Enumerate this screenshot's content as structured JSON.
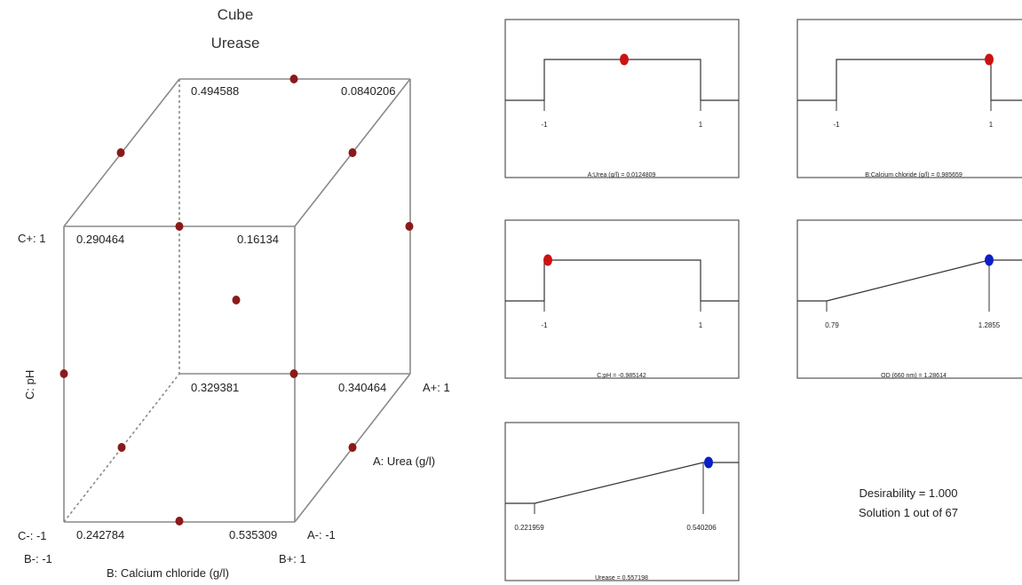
{
  "cube": {
    "title": "Cube",
    "subtitle": "Urease",
    "axis_a": "A: Urea (g/l)",
    "axis_b": "B: Calcium chloride (g/l)",
    "axis_c": "C: pH",
    "a_plus": "A+: 1",
    "a_minus": "A-: -1",
    "b_minus": "B-: -1",
    "b_plus": "B+: 1",
    "c_plus": "C+: 1",
    "c_minus": "C-: -1",
    "corners": {
      "back_top_left": "0.494588",
      "back_top_right": "0.0840206",
      "front_top_left": "0.290464",
      "front_top_right": "0.16134",
      "back_bottom_left": "0.329381",
      "back_bottom_right": "0.340464",
      "front_bottom_left": "0.242784",
      "front_bottom_right": "0.535309"
    }
  },
  "panels": {
    "a": {
      "caption": "A:Urea (g/l) = 0.0124809",
      "tick_low": "-1",
      "tick_high": "1"
    },
    "b": {
      "caption": "B:Calcium chloride (g/l) = 0.985659",
      "tick_low": "-1",
      "tick_high": "1"
    },
    "c": {
      "caption": "C:pH = -0.985142",
      "tick_low": "-1",
      "tick_high": "1"
    },
    "od": {
      "caption": "OD (660 nm) = 1.28614",
      "tick_low": "0.79",
      "tick_high": "1.2855"
    },
    "urease": {
      "caption": "Urease = 0.557198",
      "tick_low": "0.221959",
      "tick_high": "0.540206"
    }
  },
  "desirability": "Desirability = 1.000",
  "solution": "Solution 1 out of 67",
  "chart_data": [
    {
      "type": "scatter",
      "title": "Cube",
      "subtitle": "Urease",
      "axes": [
        "A: Urea (g/l)",
        "B: Calcium chloride (g/l)",
        "C: pH"
      ],
      "corner_values": [
        {
          "A": 1,
          "B": -1,
          "C": 1,
          "value": 0.494588
        },
        {
          "A": 1,
          "B": 1,
          "C": 1,
          "value": 0.0840206
        },
        {
          "A": -1,
          "B": -1,
          "C": 1,
          "value": 0.290464
        },
        {
          "A": -1,
          "B": 1,
          "C": 1,
          "value": 0.16134
        },
        {
          "A": 1,
          "B": -1,
          "C": -1,
          "value": 0.329381
        },
        {
          "A": 1,
          "B": 1,
          "C": -1,
          "value": 0.340464
        },
        {
          "A": -1,
          "B": -1,
          "C": -1,
          "value": 0.242784
        },
        {
          "A": -1,
          "B": 1,
          "C": -1,
          "value": 0.535309
        }
      ],
      "design_points_color": "#8b1a1a"
    },
    {
      "type": "line",
      "kind": "desirability ramps",
      "factors": [
        {
          "name": "A:Urea (g/l)",
          "low": -1,
          "high": 1,
          "value": 0.0124809,
          "shape": "range",
          "dot_color": "#cc1111"
        },
        {
          "name": "B:Calcium chloride (g/l)",
          "low": -1,
          "high": 1,
          "value": 0.985659,
          "shape": "range",
          "dot_color": "#cc1111"
        },
        {
          "name": "C:pH",
          "low": -1,
          "high": 1,
          "value": -0.985142,
          "shape": "range",
          "dot_color": "#cc1111"
        }
      ],
      "responses": [
        {
          "name": "OD (660 nm)",
          "low": 0.79,
          "high": 1.2855,
          "value": 1.28614,
          "shape": "maximize",
          "dot_color": "#0b1fc4"
        },
        {
          "name": "Urease",
          "low": 0.221959,
          "high": 0.540206,
          "value": 0.557198,
          "shape": "maximize",
          "dot_color": "#0b1fc4"
        }
      ],
      "desirability": 1.0,
      "solution": "1 out of 67"
    }
  ]
}
